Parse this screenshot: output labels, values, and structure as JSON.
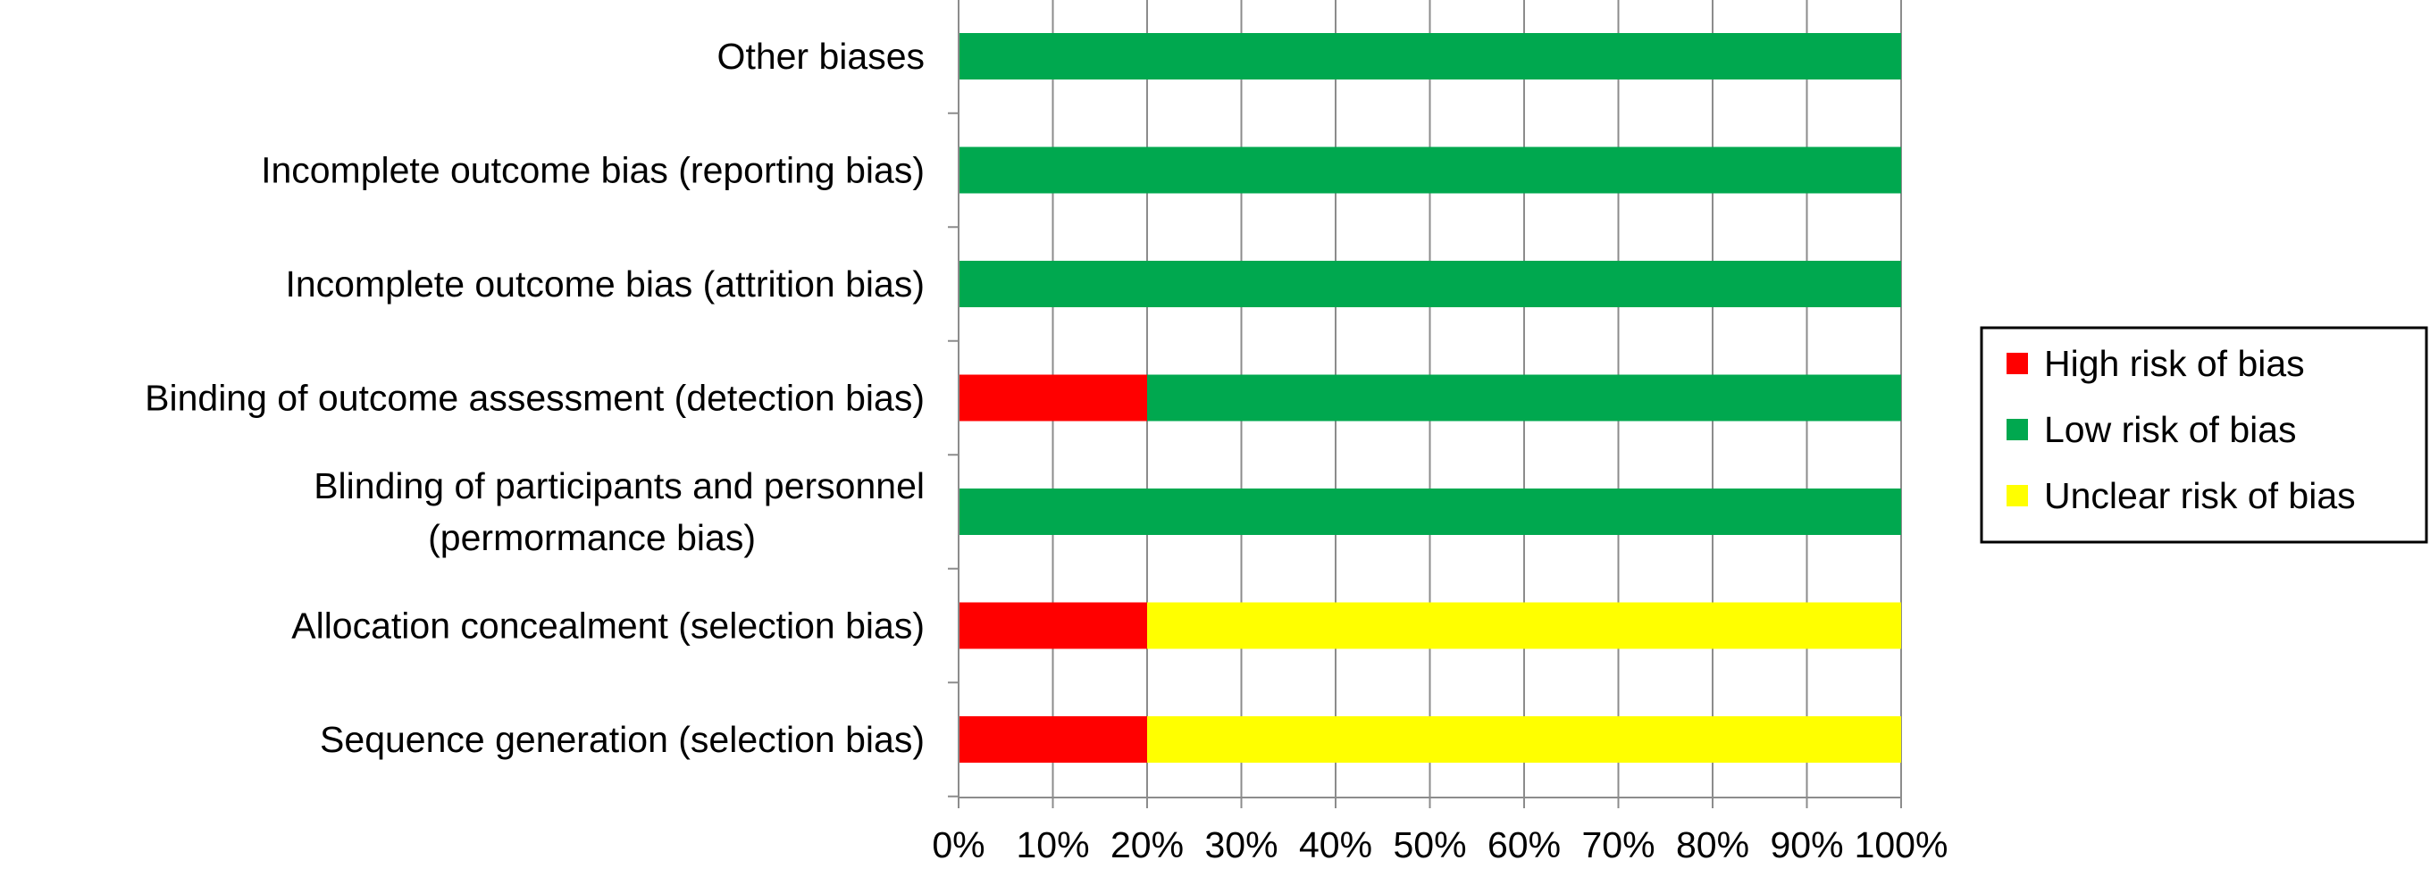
{
  "chart_data": {
    "type": "bar",
    "orientation": "horizontal",
    "stacked": true,
    "categories": [
      "Other biases",
      "Incomplete outcome bias (reporting bias)",
      "Incomplete outcome bias (attrition bias)",
      "Binding of outcome assessment (detection bias)",
      [
        "Blinding of participants and personnel",
        "(permormance bias)"
      ],
      "Allocation concealment (selection bias)",
      "Sequence generation (selection bias)"
    ],
    "series": [
      {
        "name": "High risk of bias",
        "color": "#ff0000",
        "values": [
          0,
          0,
          0,
          20,
          0,
          20,
          20
        ]
      },
      {
        "name": "Low risk of bias",
        "color": "#00a84f",
        "values": [
          100,
          100,
          100,
          80,
          100,
          0,
          0
        ]
      },
      {
        "name": "Unclear risk of bias",
        "color": "#ffff00",
        "values": [
          0,
          0,
          0,
          0,
          0,
          80,
          80
        ]
      }
    ],
    "x_ticks": [
      "0%",
      "10%",
      "20%",
      "30%",
      "40%",
      "50%",
      "60%",
      "70%",
      "80%",
      "90%",
      "100%"
    ],
    "xlim": [
      0,
      100
    ],
    "grid": true,
    "legend_position": "right",
    "title": "",
    "xlabel": "",
    "ylabel": ""
  }
}
